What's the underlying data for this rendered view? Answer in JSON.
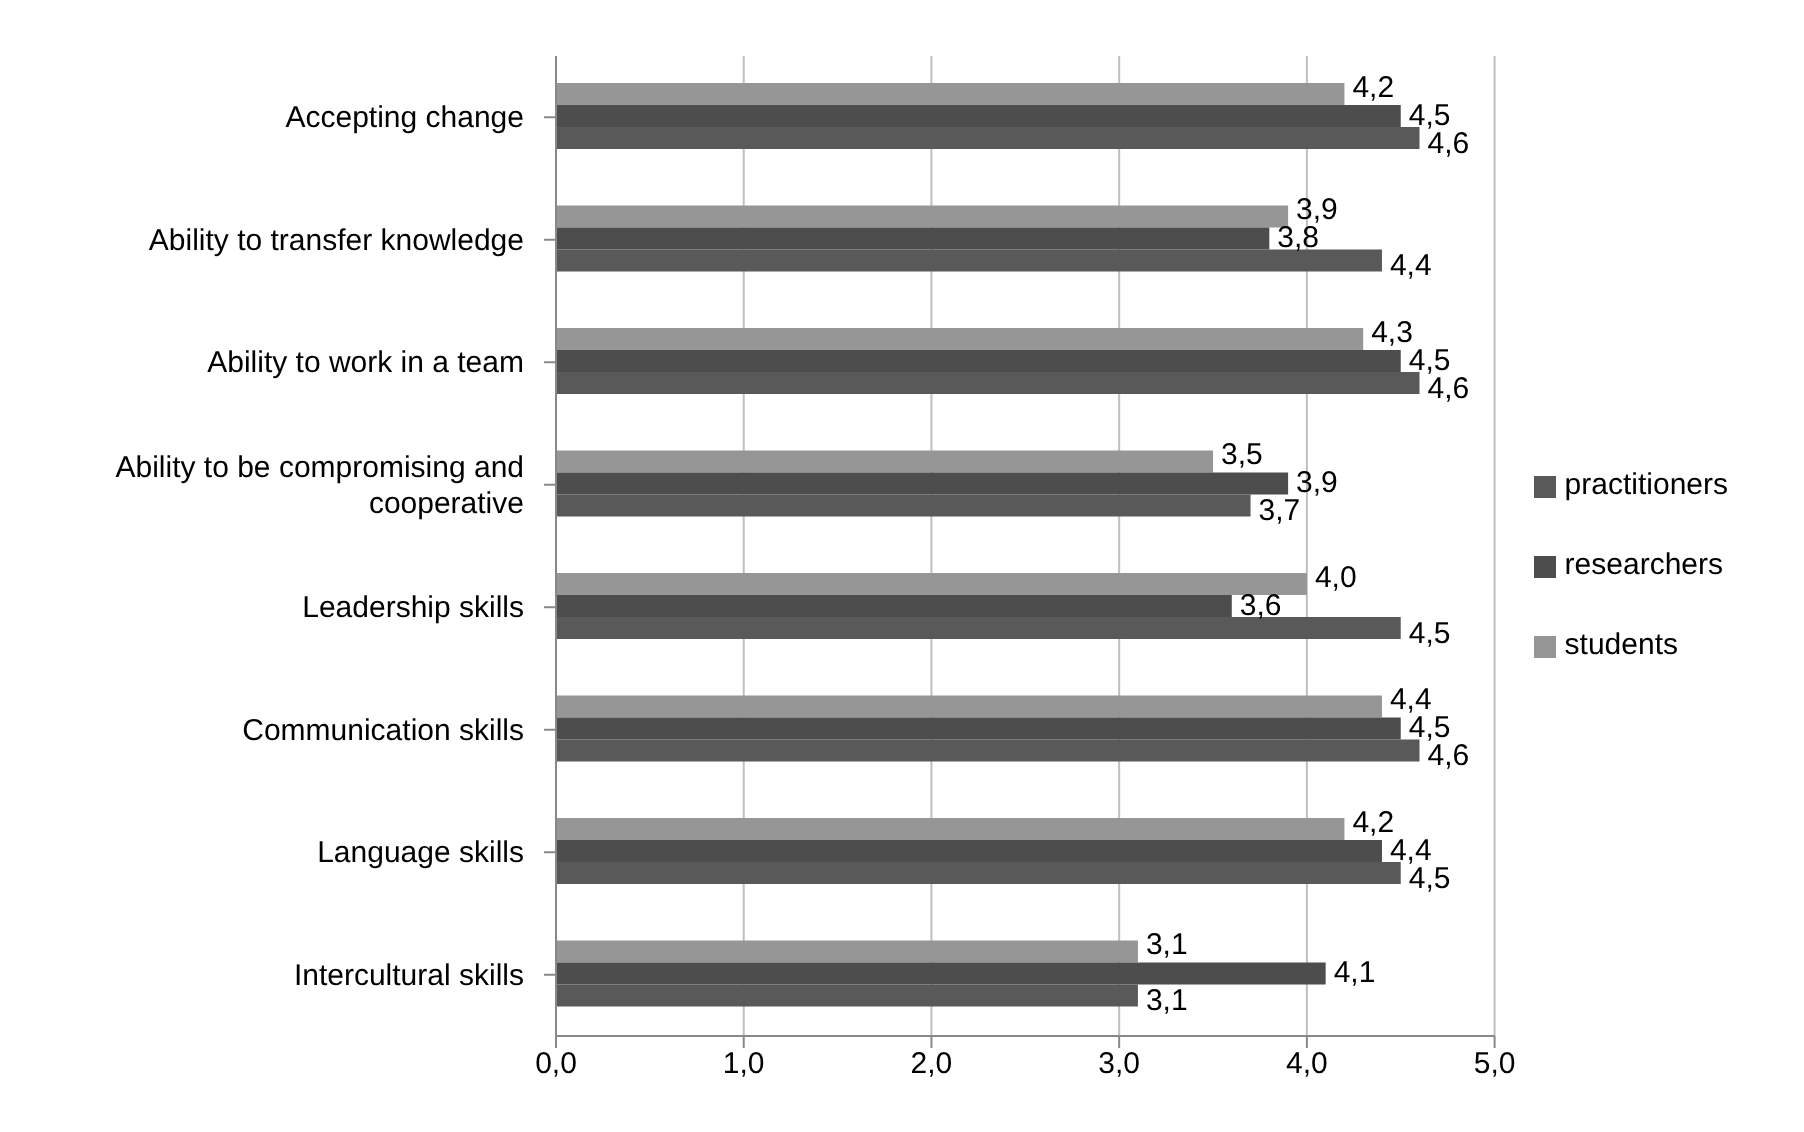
{
  "chart_data": {
    "type": "bar",
    "orientation": "horizontal",
    "categories": [
      "Accepting change",
      "Ability to transfer knowledge",
      "Ability to work in a team",
      "Ability to be compromising and cooperative",
      "Leadership skills",
      "Communication skills",
      "Language skills",
      "Intercultural skills"
    ],
    "series": [
      {
        "name": "students",
        "color": "#969696",
        "values": [
          4.2,
          3.9,
          4.3,
          3.5,
          4.0,
          4.4,
          4.2,
          3.1
        ],
        "value_labels": [
          "4,2",
          "3,9",
          "4,3",
          "3,5",
          "4,0",
          "4,4",
          "4,2",
          "3,1"
        ]
      },
      {
        "name": "researchers",
        "color": "#4d4d4d",
        "values": [
          4.5,
          3.8,
          4.5,
          3.9,
          3.6,
          4.5,
          4.4,
          4.1
        ],
        "value_labels": [
          "4,5",
          "3,8",
          "4,5",
          "3,9",
          "3,6",
          "4,5",
          "4,4",
          "4,1"
        ]
      },
      {
        "name": "practitioners",
        "color": "#595959",
        "values": [
          4.6,
          4.4,
          4.6,
          3.7,
          4.5,
          4.6,
          4.5,
          3.1
        ],
        "value_labels": [
          "4,6",
          "4,4",
          "4,6",
          "3,7",
          "4,5",
          "4,6",
          "4,5",
          "3,1"
        ]
      }
    ],
    "xlim": [
      0,
      5
    ],
    "xticks": [
      {
        "value": 0,
        "label": "0,0"
      },
      {
        "value": 1,
        "label": "1,0"
      },
      {
        "value": 2,
        "label": "2,0"
      },
      {
        "value": 3,
        "label": "3,0"
      },
      {
        "value": 4,
        "label": "4,0"
      },
      {
        "value": 5,
        "label": "5,0"
      }
    ],
    "grid": "x",
    "legend": "right"
  }
}
